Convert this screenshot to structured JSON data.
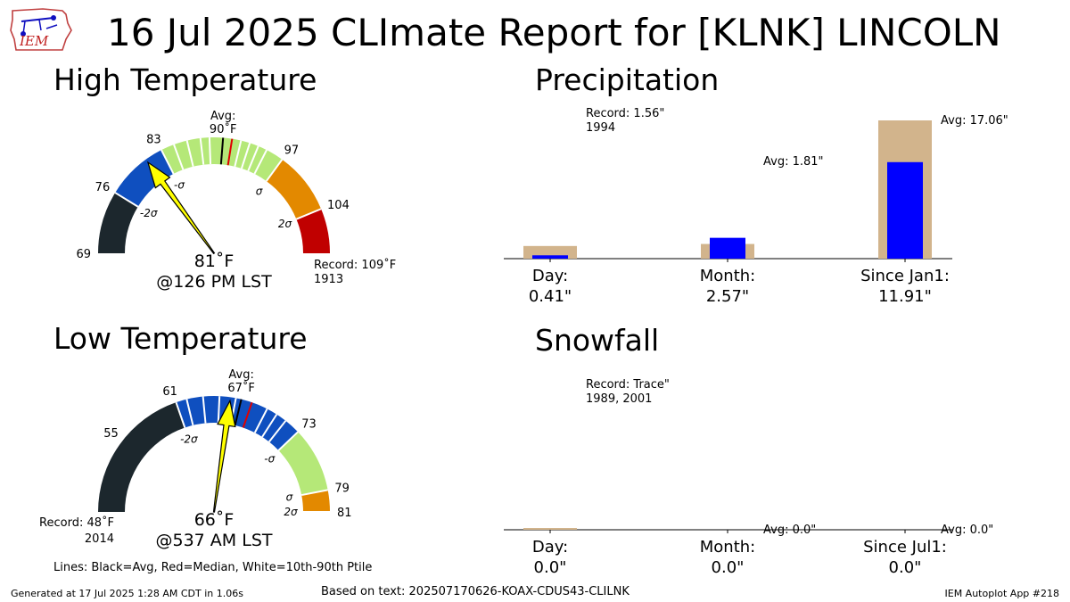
{
  "title": "16 Jul 2025 CLImate Report for [KLNK] LINCOLN",
  "logo_text": "IEM",
  "footer": {
    "generated": "Generated at 17 Jul 2025 1:28 AM CDT in 1.06s",
    "based_on": "Based on text: 202507170626-KOAX-CDUS43-CLILNK",
    "app": "IEM Autoplot App #218",
    "lines_note": "Lines: Black=Avg, Red=Median, White=10th-90th Ptile"
  },
  "colors": {
    "dark": "#1c272d",
    "blue": "#0f4fbf",
    "green": "#b5e878",
    "orange": "#e38900",
    "red": "#c00000",
    "needle": "#ffff00",
    "tan": "#d2b48c",
    "bar": "#0000ff"
  },
  "chart_data": [
    {
      "type": "gauge",
      "title": "High Temperature",
      "range": [
        69,
        109
      ],
      "ticks": [
        69,
        76,
        83,
        97,
        104
      ],
      "sigma_labels": [
        "-2σ",
        "-σ",
        "σ",
        "2σ"
      ],
      "avg_label": "Avg:",
      "avg_value": "90",
      "avg": 90,
      "median": 91,
      "white_lines": [
        84.5,
        86,
        87.5,
        88.5,
        92,
        93,
        94,
        95
      ],
      "value": 81,
      "value_label": "81",
      "time_label": "@126 PM LST",
      "unit": "°F",
      "record_label": "Record: 109",
      "record_year": "1913"
    },
    {
      "type": "gauge",
      "title": "Low Temperature",
      "range": [
        48,
        81
      ],
      "ticks": [
        55,
        61,
        73,
        79,
        81
      ],
      "sigma_labels": [
        "-2σ",
        "-σ",
        "σ",
        "2σ"
      ],
      "avg_label": "Avg:",
      "avg_value": "67",
      "avg": 67,
      "median": 68,
      "white_lines": [
        62,
        63.5,
        65,
        66.5,
        69.5,
        70.5,
        71.5
      ],
      "value": 66,
      "value_label": "66",
      "time_label": "@537 AM LST",
      "unit": "°F",
      "record_label": "Record: 48",
      "record_year": "2014"
    },
    {
      "type": "bar",
      "title": "Precipitation",
      "categories": [
        "Day:",
        "Month:",
        "Since Jan1:"
      ],
      "values": [
        0.41,
        2.57,
        11.91
      ],
      "value_labels": [
        "0.41\"",
        "2.57\"",
        "11.91\""
      ],
      "reference_values": [
        1.56,
        1.81,
        17.06
      ],
      "annotations": [
        "Record: 1.56\"",
        "1994",
        "Avg: 1.81\"",
        "Avg: 17.06\""
      ]
    },
    {
      "type": "bar",
      "title": "Snowfall",
      "categories": [
        "Day:",
        "Month:",
        "Since Jul1:"
      ],
      "values": [
        0.0,
        0.0,
        0.0
      ],
      "value_labels": [
        "0.0\"",
        "0.0\"",
        "0.0\""
      ],
      "reference_values": [
        0.0,
        0.0,
        0.0
      ],
      "annotations": [
        "Record: Trace\"",
        "1989, 2001",
        "Avg: 0.0\"",
        "Avg: 0.0\""
      ]
    }
  ]
}
